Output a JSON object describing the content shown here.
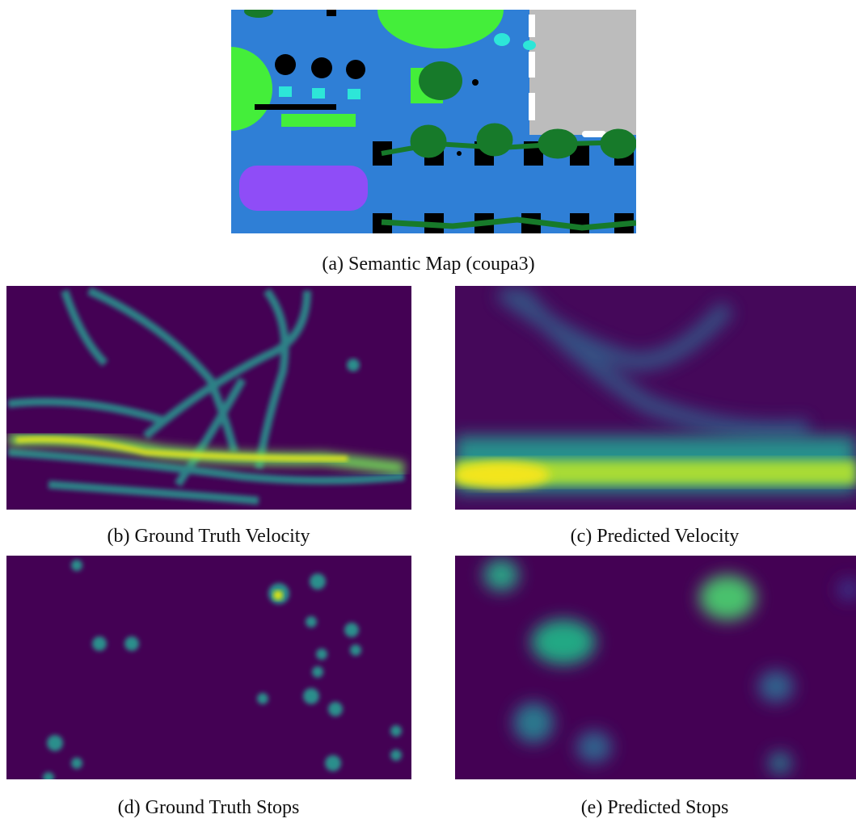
{
  "figure": {
    "panels": [
      {
        "caption": "(a) Semantic Map (coupa3)"
      },
      {
        "caption": "(b) Ground Truth Velocity"
      },
      {
        "caption": "(c) Predicted Velocity"
      },
      {
        "caption": "(d) Ground Truth Stops"
      },
      {
        "caption": "(e) Predicted Stops"
      }
    ]
  }
}
